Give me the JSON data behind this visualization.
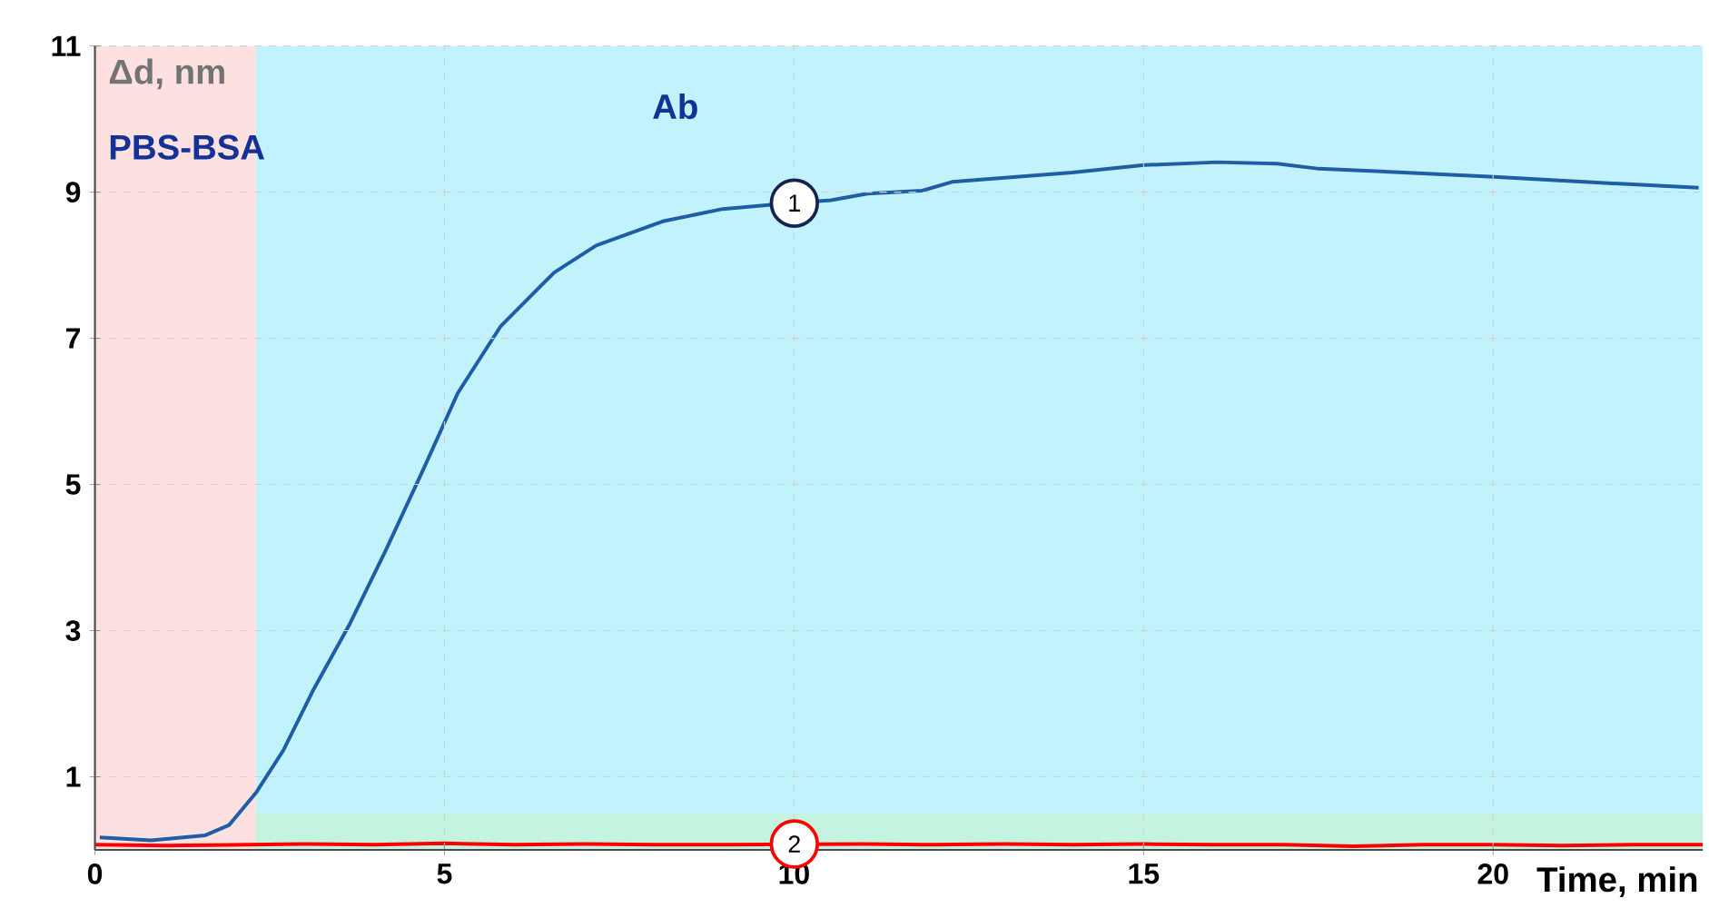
{
  "chart_data": {
    "type": "line",
    "xlabel": "Time, min",
    "ylabel": "Δd, nm",
    "xlim": [
      0,
      23
    ],
    "ylim": [
      0,
      11
    ],
    "xticks": [
      0,
      5,
      10,
      15,
      20
    ],
    "yticks": [
      1,
      3,
      5,
      7,
      9,
      11
    ],
    "grid": true,
    "legend": "center",
    "bands": [
      {
        "axis": "x",
        "from": 2.3,
        "to": 23,
        "label": "Ab",
        "color": "#c2f3fd"
      },
      {
        "axis": "y",
        "from": 0,
        "to": 0.5,
        "color": "#c4f3df"
      },
      {
        "axis": "x",
        "from": 0,
        "to": 2.3,
        "label": "PBS-BSA",
        "color": "#fde1e1"
      }
    ],
    "series": [
      {
        "name": "1",
        "color": "#1f5ea6",
        "x": [
          0.07,
          0.8,
          1.58,
          1.92,
          2.31,
          2.7,
          3.13,
          3.65,
          4.16,
          4.68,
          5.19,
          5.8,
          6.4,
          6.57,
          7.17,
          8.12,
          8.98,
          9.93,
          10.53,
          11.05,
          11.83,
          12.26,
          13.98,
          15.01,
          16.05,
          16.91,
          17.51,
          18.72,
          20.01,
          21.3,
          22.94
        ],
        "values": [
          0.17,
          0.13,
          0.2,
          0.34,
          0.79,
          1.37,
          2.2,
          3.1,
          4.1,
          5.17,
          6.25,
          7.16,
          7.74,
          7.9,
          8.27,
          8.6,
          8.77,
          8.85,
          8.89,
          8.98,
          9.02,
          9.14,
          9.27,
          9.37,
          9.41,
          9.39,
          9.32,
          9.27,
          9.21,
          9.14,
          9.06
        ]
      },
      {
        "name": "2",
        "color": "#ff0000",
        "x": [
          0,
          1,
          2,
          3,
          4,
          5,
          6,
          7,
          8,
          9,
          10,
          11,
          12,
          13,
          14,
          15,
          16,
          17,
          18,
          19,
          20,
          21,
          22,
          23
        ],
        "values": [
          0.07,
          0.06,
          0.07,
          0.08,
          0.07,
          0.09,
          0.07,
          0.08,
          0.07,
          0.07,
          null,
          0.08,
          0.07,
          0.08,
          0.07,
          0.08,
          0.07,
          0.07,
          0.05,
          0.07,
          0.07,
          0.06,
          0.07,
          0.07
        ]
      }
    ]
  }
}
